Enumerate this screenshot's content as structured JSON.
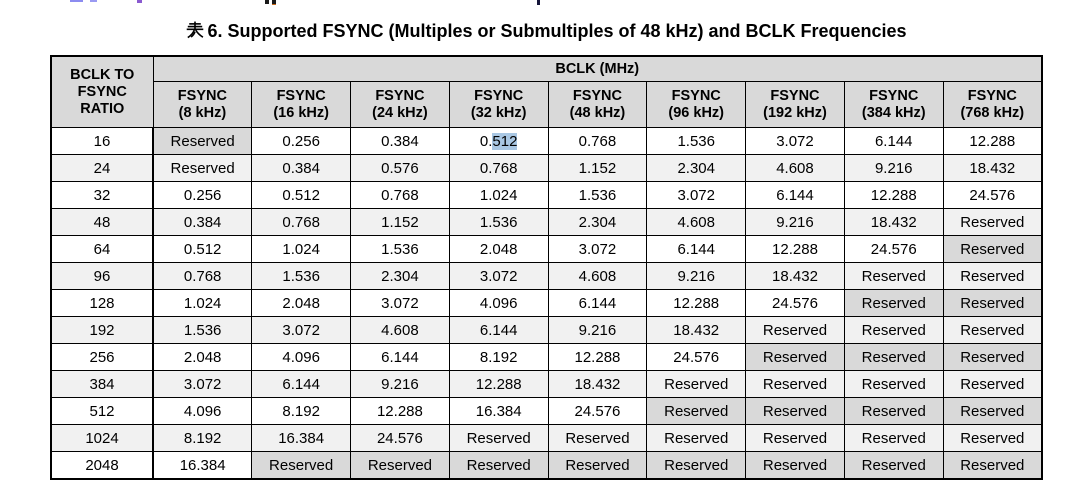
{
  "page": {
    "title": {
      "full": "表 6. Supported FSYNC (Multiples or Submultiples of 48 kHz) and BCLK Frequencies",
      "cjk_char": "表",
      "rest": "6. Supported FSYNC (Multiples or Submultiples of 48 kHz) and BCLK Frequencies"
    }
  },
  "table": {
    "corner_header": "BCLK TO\nFSYNC\nRATIO",
    "group_header": "BCLK (MHz)",
    "column_headers": [
      "FSYNC\n(8 kHz)",
      "FSYNC\n(16 kHz)",
      "FSYNC\n(24 kHz)",
      "FSYNC\n(32 kHz)",
      "FSYNC\n(48 kHz)",
      "FSYNC\n(96 kHz)",
      "FSYNC\n(192 kHz)",
      "FSYNC\n(384 kHz)",
      "FSYNC\n(768 kHz)"
    ],
    "reserved_label": "Reserved",
    "rows": [
      {
        "ratio": "16",
        "cells": [
          "Reserved",
          "0.256",
          "0.384",
          "0.512",
          "0.768",
          "1.536",
          "3.072",
          "6.144",
          "12.288"
        ]
      },
      {
        "ratio": "24",
        "cells": [
          "Reserved",
          "0.384",
          "0.576",
          "0.768",
          "1.152",
          "2.304",
          "4.608",
          "9.216",
          "18.432"
        ]
      },
      {
        "ratio": "32",
        "cells": [
          "0.256",
          "0.512",
          "0.768",
          "1.024",
          "1.536",
          "3.072",
          "6.144",
          "12.288",
          "24.576"
        ]
      },
      {
        "ratio": "48",
        "cells": [
          "0.384",
          "0.768",
          "1.152",
          "1.536",
          "2.304",
          "4.608",
          "9.216",
          "18.432",
          "Reserved"
        ]
      },
      {
        "ratio": "64",
        "cells": [
          "0.512",
          "1.024",
          "1.536",
          "2.048",
          "3.072",
          "6.144",
          "12.288",
          "24.576",
          "Reserved"
        ]
      },
      {
        "ratio": "96",
        "cells": [
          "0.768",
          "1.536",
          "2.304",
          "3.072",
          "4.608",
          "9.216",
          "18.432",
          "Reserved",
          "Reserved"
        ]
      },
      {
        "ratio": "128",
        "cells": [
          "1.024",
          "2.048",
          "3.072",
          "4.096",
          "6.144",
          "12.288",
          "24.576",
          "Reserved",
          "Reserved"
        ]
      },
      {
        "ratio": "192",
        "cells": [
          "1.536",
          "3.072",
          "4.608",
          "6.144",
          "9.216",
          "18.432",
          "Reserved",
          "Reserved",
          "Reserved"
        ]
      },
      {
        "ratio": "256",
        "cells": [
          "2.048",
          "4.096",
          "6.144",
          "8.192",
          "12.288",
          "24.576",
          "Reserved",
          "Reserved",
          "Reserved"
        ]
      },
      {
        "ratio": "384",
        "cells": [
          "3.072",
          "6.144",
          "9.216",
          "12.288",
          "18.432",
          "Reserved",
          "Reserved",
          "Reserved",
          "Reserved"
        ]
      },
      {
        "ratio": "512",
        "cells": [
          "4.096",
          "8.192",
          "12.288",
          "16.384",
          "24.576",
          "Reserved",
          "Reserved",
          "Reserved",
          "Reserved"
        ]
      },
      {
        "ratio": "1024",
        "cells": [
          "8.192",
          "16.384",
          "24.576",
          "Reserved",
          "Reserved",
          "Reserved",
          "Reserved",
          "Reserved",
          "Reserved"
        ]
      },
      {
        "ratio": "2048",
        "cells": [
          "16.384",
          "Reserved",
          "Reserved",
          "Reserved",
          "Reserved",
          "Reserved",
          "Reserved",
          "Reserved",
          "Reserved"
        ]
      }
    ],
    "text_selection": {
      "row_ratio": "16",
      "col_index": 3,
      "column": "FSYNC (32 kHz)",
      "cell_value": "0.512",
      "selected_text": "512"
    }
  },
  "colors": {
    "header_fill": "#d9d9d9",
    "reserved_fill": "#d9d9d9",
    "stripe_fill": "#f1f1f1",
    "selection_highlight": "#a9c7e3",
    "border": "#000000"
  }
}
